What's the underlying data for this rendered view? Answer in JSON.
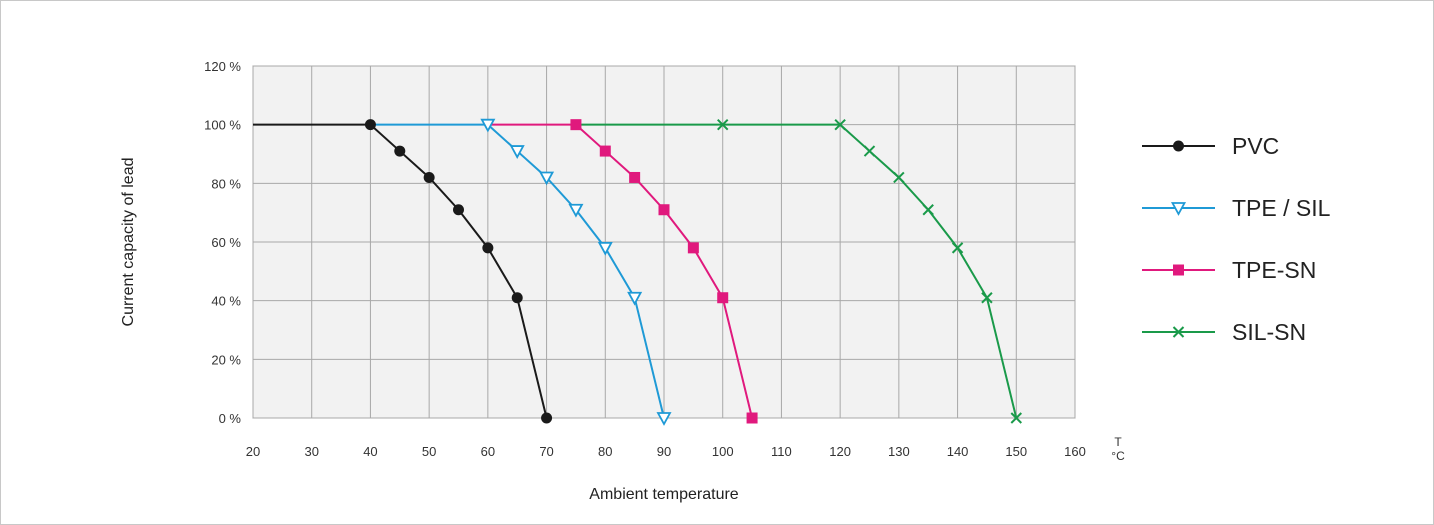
{
  "chart_data": {
    "type": "line",
    "xlabel": "Ambient temperature",
    "ylabel": "Current capacity of lead",
    "x_unit_top": "T",
    "x_unit_bottom": "°C",
    "xlim": [
      20,
      160
    ],
    "ylim": [
      0,
      120
    ],
    "x_ticks": [
      20,
      30,
      40,
      50,
      60,
      70,
      80,
      90,
      100,
      110,
      120,
      130,
      140,
      150,
      160
    ],
    "y_ticks": [
      0,
      20,
      40,
      60,
      80,
      100,
      120
    ],
    "y_tick_labels": [
      "0 %",
      "20 %",
      "40 %",
      "60 %",
      "80 %",
      "100 %",
      "120 %"
    ],
    "grid": true,
    "legend_position": "right",
    "series": [
      {
        "name": "PVC",
        "color": "#1a1a1a",
        "marker": "circle",
        "line_points": [
          [
            20,
            100
          ],
          [
            40,
            100
          ],
          [
            45,
            91
          ],
          [
            50,
            82
          ],
          [
            55,
            71
          ],
          [
            60,
            58
          ],
          [
            65,
            41
          ],
          [
            70,
            0
          ]
        ],
        "marker_points": [
          [
            40,
            100
          ],
          [
            45,
            91
          ],
          [
            50,
            82
          ],
          [
            55,
            71
          ],
          [
            60,
            58
          ],
          [
            65,
            41
          ],
          [
            70,
            0
          ]
        ]
      },
      {
        "name": "TPE / SIL",
        "color": "#1f9ad6",
        "marker": "triangle-down-open",
        "line_points": [
          [
            40,
            100
          ],
          [
            60,
            100
          ],
          [
            65,
            91
          ],
          [
            70,
            82
          ],
          [
            75,
            71
          ],
          [
            80,
            58
          ],
          [
            85,
            41
          ],
          [
            90,
            0
          ]
        ],
        "marker_points": [
          [
            60,
            100
          ],
          [
            65,
            91
          ],
          [
            70,
            82
          ],
          [
            75,
            71
          ],
          [
            80,
            58
          ],
          [
            85,
            41
          ],
          [
            90,
            0
          ]
        ]
      },
      {
        "name": "TPE-SN",
        "color": "#e0197d",
        "marker": "square",
        "line_points": [
          [
            60,
            100
          ],
          [
            75,
            100
          ],
          [
            80,
            91
          ],
          [
            85,
            82
          ],
          [
            90,
            71
          ],
          [
            95,
            58
          ],
          [
            100,
            41
          ],
          [
            105,
            0
          ]
        ],
        "marker_points": [
          [
            75,
            100
          ],
          [
            80,
            91
          ],
          [
            85,
            82
          ],
          [
            90,
            71
          ],
          [
            95,
            58
          ],
          [
            100,
            41
          ],
          [
            105,
            0
          ]
        ]
      },
      {
        "name": "SIL-SN",
        "color": "#1a9a4a",
        "marker": "x",
        "line_points": [
          [
            75,
            100
          ],
          [
            100,
            100
          ],
          [
            120,
            100
          ],
          [
            125,
            91
          ],
          [
            130,
            82
          ],
          [
            135,
            71
          ],
          [
            140,
            58
          ],
          [
            145,
            41
          ],
          [
            150,
            0
          ]
        ],
        "marker_points": [
          [
            100,
            100
          ],
          [
            120,
            100
          ],
          [
            125,
            91
          ],
          [
            130,
            82
          ],
          [
            135,
            71
          ],
          [
            140,
            58
          ],
          [
            145,
            41
          ],
          [
            150,
            0
          ]
        ]
      }
    ]
  }
}
